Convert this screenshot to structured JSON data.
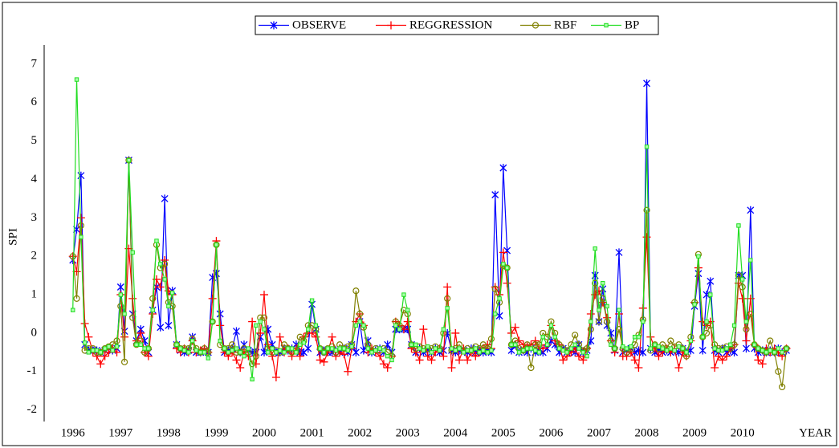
{
  "chart_data": {
    "type": "line",
    "y_label": "SPI",
    "x_label": "YEAR",
    "xlim": [
      1995.4,
      2011.6
    ],
    "ylim": [
      -2.3,
      7.5
    ],
    "xticks": [
      1996,
      1997,
      1998,
      1999,
      2000,
      2001,
      2002,
      2003,
      2004,
      2005,
      2006,
      2007,
      2008,
      2009,
      2010
    ],
    "yticks": [
      -2,
      -1,
      0,
      1,
      2,
      3,
      4,
      5,
      6,
      7
    ],
    "grid": false,
    "legend": "top",
    "x": [
      1996,
      1996.08,
      1996.17,
      1996.25,
      1996.33,
      1996.42,
      1996.5,
      1996.58,
      1996.67,
      1996.75,
      1996.83,
      1996.92,
      1997,
      1997.08,
      1997.17,
      1997.25,
      1997.33,
      1997.42,
      1997.5,
      1997.58,
      1997.67,
      1997.75,
      1997.83,
      1997.92,
      1998,
      1998.08,
      1998.17,
      1998.25,
      1998.33,
      1998.42,
      1998.5,
      1998.58,
      1998.67,
      1998.75,
      1998.83,
      1998.92,
      1999,
      1999.08,
      1999.17,
      1999.25,
      1999.33,
      1999.42,
      1999.5,
      1999.58,
      1999.67,
      1999.75,
      1999.83,
      1999.92,
      2000,
      2000.08,
      2000.17,
      2000.25,
      2000.33,
      2000.42,
      2000.5,
      2000.58,
      2000.67,
      2000.75,
      2000.83,
      2000.92,
      2001,
      2001.08,
      2001.17,
      2001.25,
      2001.33,
      2001.42,
      2001.5,
      2001.58,
      2001.67,
      2001.75,
      2001.83,
      2001.92,
      2002,
      2002.08,
      2002.17,
      2002.25,
      2002.33,
      2002.42,
      2002.5,
      2002.58,
      2002.67,
      2002.75,
      2002.83,
      2002.92,
      2003,
      2003.08,
      2003.17,
      2003.25,
      2003.33,
      2003.42,
      2003.5,
      2003.58,
      2003.67,
      2003.75,
      2003.83,
      2003.92,
      2004,
      2004.08,
      2004.17,
      2004.25,
      2004.33,
      2004.42,
      2004.5,
      2004.58,
      2004.67,
      2004.75,
      2004.83,
      2004.92,
      2005,
      2005.08,
      2005.17,
      2005.25,
      2005.33,
      2005.42,
      2005.5,
      2005.58,
      2005.67,
      2005.75,
      2005.83,
      2005.92,
      2006,
      2006.08,
      2006.17,
      2006.25,
      2006.33,
      2006.42,
      2006.5,
      2006.58,
      2006.67,
      2006.75,
      2006.83,
      2006.92,
      2007,
      2007.08,
      2007.17,
      2007.25,
      2007.33,
      2007.42,
      2007.5,
      2007.58,
      2007.67,
      2007.75,
      2007.83,
      2007.92,
      2008,
      2008.08,
      2008.17,
      2008.25,
      2008.33,
      2008.42,
      2008.5,
      2008.58,
      2008.67,
      2008.75,
      2008.83,
      2008.92,
      2009,
      2009.08,
      2009.17,
      2009.25,
      2009.33,
      2009.42,
      2009.5,
      2009.58,
      2009.67,
      2009.75,
      2009.83,
      2009.92,
      2010,
      2010.08,
      2010.17,
      2010.25,
      2010.33,
      2010.42,
      2010.5,
      2010.58,
      2010.67,
      2010.75,
      2010.83,
      2010.92
    ],
    "series": [
      {
        "name": "OBSERVE",
        "color": "#0000ff",
        "marker": "asterisk",
        "values": [
          1.9,
          2.7,
          4.1,
          -0.3,
          -0.45,
          -0.45,
          -0.45,
          -0.5,
          -0.45,
          -0.4,
          -0.45,
          -0.4,
          1.2,
          0.05,
          4.5,
          0.5,
          -0.2,
          0.1,
          -0.2,
          -0.5,
          0.6,
          1.2,
          0.15,
          3.5,
          0.2,
          1.1,
          -0.3,
          -0.45,
          -0.5,
          -0.45,
          -0.1,
          -0.5,
          -0.5,
          -0.45,
          -0.5,
          1.45,
          1.55,
          0.5,
          -0.5,
          -0.45,
          -0.4,
          0.05,
          -0.5,
          -0.3,
          -0.45,
          -0.5,
          -0.5,
          -0.1,
          -0.5,
          0.1,
          -0.3,
          -0.5,
          -0.5,
          -0.4,
          -0.45,
          -0.4,
          -0.3,
          -0.5,
          -0.5,
          -0.4,
          0.75,
          0.1,
          -0.5,
          -0.45,
          -0.5,
          -0.5,
          -0.45,
          -0.5,
          -0.4,
          -0.5,
          -0.3,
          -0.5,
          0.3,
          -0.45,
          -0.2,
          -0.5,
          -0.45,
          -0.4,
          -0.5,
          -0.3,
          -0.5,
          0.1,
          0.1,
          0.1,
          0.1,
          -0.3,
          -0.5,
          -0.4,
          -0.5,
          -0.45,
          -0.5,
          -0.4,
          -0.5,
          -0.45,
          0.0,
          -0.45,
          -0.5,
          -0.45,
          -0.45,
          -0.5,
          -0.4,
          -0.5,
          -0.45,
          -0.5,
          -0.45,
          -0.5,
          3.6,
          0.45,
          4.3,
          2.15,
          -0.45,
          -0.3,
          -0.5,
          -0.45,
          -0.5,
          -0.4,
          -0.5,
          -0.45,
          -0.5,
          -0.4,
          -0.2,
          -0.3,
          -0.5,
          -0.4,
          -0.5,
          -0.45,
          -0.5,
          -0.3,
          -0.5,
          -0.45,
          -0.2,
          1.5,
          0.3,
          1.15,
          0.2,
          0.0,
          -0.45,
          2.1,
          -0.5,
          -0.45,
          -0.4,
          -0.5,
          -0.45,
          -0.5,
          6.5,
          -0.4,
          -0.5,
          -0.45,
          -0.5,
          -0.45,
          -0.5,
          -0.45,
          -0.5,
          -0.4,
          -0.5,
          -0.45,
          0.7,
          1.55,
          -0.45,
          1.0,
          1.35,
          -0.45,
          -0.5,
          -0.4,
          -0.5,
          -0.45,
          -0.5,
          1.5,
          1.5,
          -0.4,
          3.2,
          -0.4,
          -0.5,
          -0.45,
          -0.5,
          -0.45,
          -0.5,
          -0.4,
          -0.5,
          -0.45
        ]
      },
      {
        "name": "REGGRESSION",
        "color": "#ff0000",
        "marker": "plus",
        "values": [
          2.0,
          1.6,
          3.0,
          0.25,
          -0.1,
          -0.5,
          -0.6,
          -0.8,
          -0.6,
          -0.5,
          -0.4,
          -0.5,
          1.0,
          -0.1,
          2.2,
          0.9,
          -0.2,
          0.0,
          -0.5,
          -0.6,
          0.5,
          1.4,
          1.2,
          1.9,
          1.1,
          1.0,
          -0.4,
          -0.5,
          -0.4,
          -0.5,
          -0.2,
          -0.5,
          -0.45,
          -0.4,
          -0.5,
          0.9,
          2.4,
          0.2,
          -0.5,
          -0.6,
          -0.5,
          -0.7,
          -0.9,
          -0.5,
          -0.6,
          0.3,
          -0.8,
          0.0,
          1.0,
          -0.3,
          -0.6,
          -1.15,
          -0.1,
          -0.5,
          -0.4,
          -0.6,
          -0.4,
          -0.6,
          -0.1,
          0.0,
          0.0,
          -0.1,
          -0.7,
          -0.75,
          -0.5,
          -0.1,
          -0.6,
          -0.5,
          -0.55,
          -1.0,
          -0.4,
          0.3,
          0.5,
          0.2,
          -0.5,
          -0.4,
          -0.5,
          -0.6,
          -0.8,
          -0.9,
          -0.6,
          0.3,
          0.2,
          0.1,
          0.3,
          -0.4,
          -0.5,
          -0.7,
          0.1,
          -0.6,
          -0.7,
          -0.5,
          -0.4,
          -0.6,
          1.2,
          -0.9,
          0.0,
          -0.7,
          -0.4,
          -0.7,
          -0.5,
          -0.6,
          -0.5,
          -0.4,
          -0.3,
          -0.4,
          1.2,
          1.0,
          2.1,
          1.3,
          0.0,
          0.15,
          -0.2,
          -0.3,
          -0.35,
          -0.3,
          -0.2,
          -0.4,
          -0.4,
          -0.3,
          0.2,
          -0.2,
          -0.3,
          -0.7,
          -0.6,
          -0.5,
          -0.4,
          -0.6,
          -0.7,
          -0.4,
          0.5,
          1.0,
          1.1,
          0.8,
          0.4,
          -0.2,
          -0.5,
          0.5,
          -0.6,
          -0.6,
          -0.5,
          -0.7,
          -0.9,
          0.65,
          2.5,
          -0.1,
          -0.4,
          -0.6,
          -0.5,
          -0.4,
          -0.5,
          -0.4,
          -0.9,
          -0.5,
          -0.6,
          -0.2,
          0.8,
          1.7,
          0.3,
          0.2,
          0.3,
          -0.9,
          -0.6,
          -0.7,
          -0.6,
          -0.4,
          -0.3,
          1.3,
          0.9,
          -0.2,
          0.9,
          -0.3,
          -0.7,
          -0.8,
          -0.4,
          -0.5,
          -0.4,
          -0.5,
          -0.6,
          -0.4
        ]
      },
      {
        "name": "RBF",
        "color": "#808000",
        "marker": "circle",
        "values": [
          2.0,
          0.9,
          2.8,
          -0.45,
          -0.4,
          -0.4,
          -0.5,
          -0.5,
          -0.4,
          -0.35,
          -0.3,
          -0.2,
          0.7,
          -0.75,
          4.5,
          0.4,
          -0.3,
          -0.2,
          -0.5,
          -0.4,
          0.9,
          2.3,
          1.7,
          1.8,
          0.8,
          0.7,
          -0.3,
          -0.4,
          -0.4,
          -0.4,
          -0.15,
          -0.4,
          -0.5,
          -0.4,
          -0.5,
          0.3,
          2.3,
          -0.3,
          -0.4,
          -0.4,
          -0.3,
          -0.5,
          -0.5,
          -0.4,
          -0.5,
          -0.8,
          -0.6,
          0.4,
          0.4,
          -0.4,
          -0.5,
          -0.45,
          -0.5,
          -0.3,
          -0.4,
          -0.5,
          -0.45,
          -0.1,
          -0.2,
          0.2,
          0.2,
          0.1,
          -0.4,
          -0.5,
          -0.4,
          -0.35,
          -0.5,
          -0.3,
          -0.4,
          -0.35,
          -0.3,
          1.1,
          0.5,
          0.15,
          -0.3,
          -0.45,
          -0.4,
          -0.45,
          -0.4,
          -0.5,
          -0.6,
          0.3,
          0.2,
          0.6,
          0.5,
          -0.3,
          -0.4,
          -0.35,
          -0.4,
          -0.4,
          -0.4,
          -0.35,
          -0.4,
          0.0,
          0.9,
          -0.45,
          -0.4,
          -0.3,
          -0.45,
          -0.4,
          -0.45,
          -0.35,
          -0.4,
          -0.3,
          -0.4,
          -0.15,
          1.15,
          0.8,
          1.75,
          1.7,
          -0.3,
          -0.2,
          -0.4,
          -0.45,
          -0.3,
          -0.9,
          -0.3,
          -0.3,
          0.0,
          -0.1,
          0.3,
          0.0,
          -0.3,
          -0.4,
          -0.45,
          -0.3,
          -0.05,
          -0.3,
          -0.45,
          -0.4,
          0.1,
          1.3,
          0.3,
          0.9,
          0.3,
          -0.2,
          -0.4,
          0.1,
          -0.4,
          -0.5,
          -0.4,
          -0.3,
          -0.05,
          0.35,
          3.2,
          -0.45,
          -0.3,
          -0.4,
          -0.3,
          -0.4,
          -0.2,
          -0.35,
          -0.3,
          -0.4,
          -0.6,
          -0.1,
          0.8,
          2.05,
          -0.1,
          0.0,
          0.2,
          -0.3,
          -0.4,
          -0.4,
          -0.35,
          -0.4,
          -0.3,
          1.5,
          1.2,
          0.1,
          0.5,
          -0.3,
          -0.4,
          -0.45,
          -0.5,
          -0.2,
          -0.5,
          -1.0,
          -1.4,
          -0.4
        ]
      },
      {
        "name": "BP",
        "color": "#22dd22",
        "marker": "square",
        "values": [
          0.6,
          6.6,
          2.5,
          -0.25,
          -0.5,
          -0.45,
          -0.45,
          -0.5,
          -0.4,
          -0.35,
          -0.45,
          -0.35,
          1.0,
          0.5,
          4.5,
          2.1,
          -0.3,
          -0.3,
          -0.4,
          -0.4,
          0.6,
          2.4,
          1.8,
          1.4,
          0.7,
          1.05,
          -0.3,
          -0.4,
          -0.45,
          -0.5,
          -0.2,
          -0.45,
          -0.5,
          -0.5,
          -0.65,
          0.3,
          2.3,
          -0.2,
          -0.4,
          -0.5,
          -0.45,
          -0.4,
          -0.5,
          -0.6,
          -0.4,
          -1.2,
          0.2,
          0.3,
          0.1,
          -0.5,
          -0.4,
          -0.5,
          -0.45,
          -0.5,
          -0.4,
          -0.4,
          -0.5,
          -0.3,
          -0.25,
          0.1,
          0.85,
          0.2,
          -0.4,
          -0.5,
          -0.4,
          -0.4,
          -0.45,
          -0.4,
          -0.4,
          -0.45,
          -0.35,
          0.2,
          0.3,
          0.2,
          -0.4,
          -0.5,
          -0.45,
          -0.4,
          -0.45,
          -0.6,
          -0.7,
          0.2,
          0.1,
          1.0,
          0.6,
          -0.3,
          -0.3,
          -0.4,
          -0.45,
          -0.35,
          -0.5,
          -0.4,
          -0.45,
          0.1,
          0.65,
          -0.4,
          -0.45,
          -0.4,
          -0.5,
          -0.45,
          -0.45,
          -0.4,
          -0.5,
          -0.45,
          -0.5,
          -0.45,
          0.5,
          0.9,
          1.8,
          1.7,
          -0.3,
          -0.3,
          -0.5,
          -0.45,
          -0.4,
          -0.4,
          -0.45,
          -0.5,
          -0.1,
          -0.3,
          0.2,
          -0.1,
          -0.4,
          -0.45,
          -0.5,
          -0.4,
          -0.3,
          -0.4,
          -0.5,
          -0.6,
          0.3,
          2.2,
          0.6,
          1.3,
          0.7,
          -0.3,
          -0.4,
          0.6,
          -0.35,
          -0.4,
          -0.35,
          -0.1,
          -0.1,
          0.3,
          4.85,
          -0.4,
          -0.3,
          -0.35,
          -0.4,
          -0.45,
          -0.4,
          -0.45,
          -0.35,
          -0.4,
          -0.5,
          -0.2,
          0.75,
          2.0,
          -0.1,
          0.3,
          1.0,
          -0.4,
          -0.45,
          -0.45,
          -0.4,
          -0.3,
          0.2,
          2.8,
          1.4,
          0.3,
          1.9,
          -0.3,
          -0.4,
          -0.45,
          -0.5,
          -0.45,
          -0.5,
          -0.4,
          -0.5,
          -0.4
        ]
      }
    ]
  }
}
